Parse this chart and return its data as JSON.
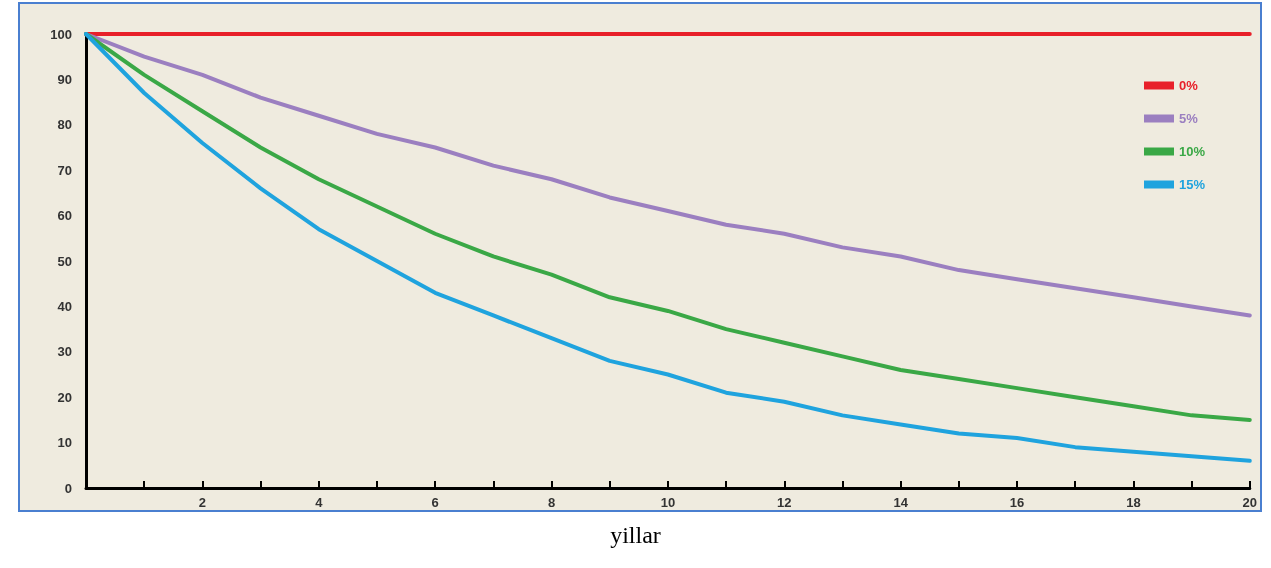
{
  "chart_data": {
    "type": "line",
    "xlabel": "yillar",
    "x": [
      0,
      1,
      2,
      3,
      4,
      5,
      6,
      7,
      8,
      9,
      10,
      11,
      12,
      13,
      14,
      15,
      16,
      17,
      18,
      19,
      20
    ],
    "series": [
      {
        "name": "0%",
        "color": "#e8202a",
        "x": [
          0,
          20
        ],
        "values": [
          100,
          100
        ]
      },
      {
        "name": "5%",
        "color": "#9b7fc0",
        "values": [
          100,
          95,
          91,
          86,
          82,
          78,
          75,
          71,
          68,
          64,
          61,
          58,
          56,
          53,
          51,
          48,
          46,
          44,
          42,
          40,
          38
        ]
      },
      {
        "name": "10%",
        "color": "#3aa846",
        "values": [
          100,
          91,
          83,
          75,
          68,
          62,
          56,
          51,
          47,
          42,
          39,
          35,
          32,
          29,
          26,
          24,
          22,
          20,
          18,
          16,
          15
        ]
      },
      {
        "name": "15%",
        "color": "#1fa3de",
        "values": [
          100,
          87,
          76,
          66,
          57,
          50,
          43,
          38,
          33,
          28,
          25,
          21,
          19,
          16,
          14,
          12,
          11,
          9,
          8,
          7,
          6
        ]
      }
    ],
    "xlim": [
      0,
      20
    ],
    "xticks": [
      {
        "value": 0,
        "label": null
      },
      {
        "value": 1,
        "label": null
      },
      2,
      {
        "value": 3,
        "label": null
      },
      4,
      {
        "value": 5,
        "label": null
      },
      6,
      {
        "value": 7,
        "label": null
      },
      8,
      {
        "value": 9,
        "label": null
      },
      10,
      {
        "value": 11,
        "label": null
      },
      12,
      {
        "value": 13,
        "label": null
      },
      14,
      {
        "value": 15,
        "label": null
      },
      16,
      {
        "value": 17,
        "label": null
      },
      18,
      {
        "value": 19,
        "label": null
      },
      20
    ],
    "ylim": [
      0,
      100
    ],
    "yticks": [
      0,
      10,
      20,
      30,
      40,
      50,
      60,
      70,
      80,
      90,
      100
    ],
    "grid": false,
    "legend": "top right",
    "marker": "none",
    "line_style": "solid"
  }
}
